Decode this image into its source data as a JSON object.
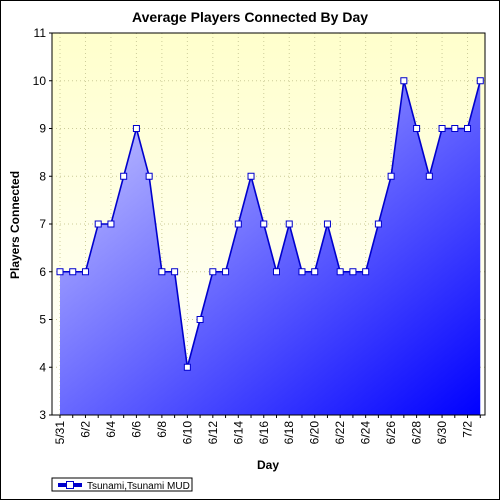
{
  "chart_data": {
    "type": "area",
    "title": "Average Players Connected By Day",
    "xlabel": "Day",
    "ylabel": "Players Connected",
    "ylim": [
      3,
      11
    ],
    "yticks": [
      3,
      4,
      5,
      6,
      7,
      8,
      9,
      10,
      11
    ],
    "x": [
      "5/31",
      "6/1",
      "6/2",
      "6/3",
      "6/4",
      "6/5",
      "6/6",
      "6/7",
      "6/8",
      "6/9",
      "6/10",
      "6/11",
      "6/12",
      "6/13",
      "6/14",
      "6/15",
      "6/16",
      "6/17",
      "6/18",
      "6/19",
      "6/20",
      "6/21",
      "6/22",
      "6/23",
      "6/24",
      "6/25",
      "6/26",
      "6/27",
      "6/28",
      "6/29",
      "6/30",
      "7/1",
      "7/2",
      "7/3"
    ],
    "xtick_labels": [
      "5/31",
      "",
      "6/2",
      "",
      "6/4",
      "",
      "6/6",
      "",
      "6/8",
      "",
      "6/10",
      "",
      "6/12",
      "",
      "6/14",
      "",
      "6/16",
      "",
      "6/18",
      "",
      "6/20",
      "",
      "6/22",
      "",
      "6/24",
      "",
      "6/26",
      "",
      "6/28",
      "",
      "6/30",
      "",
      "7/2",
      ""
    ],
    "series": [
      {
        "name": "Tsunami,Tsunami MUD",
        "values": [
          6,
          6,
          6,
          7,
          7,
          8,
          9,
          8,
          6,
          6,
          4,
          5,
          6,
          6,
          7,
          8,
          7,
          6,
          7,
          6,
          6,
          7,
          6,
          6,
          6,
          7,
          8,
          10,
          9,
          8,
          9,
          9,
          9,
          10
        ]
      }
    ],
    "grid": true,
    "legend": "bottom-left",
    "colors": {
      "plot_bg_top": "#ffffcc",
      "plot_bg_bottom": "#ffffff",
      "area_light": "#d0d0ff",
      "area_dark": "#0000ff",
      "line": "#0000cc",
      "marker_fill": "#ffffff",
      "grid": "#cccc99"
    }
  }
}
